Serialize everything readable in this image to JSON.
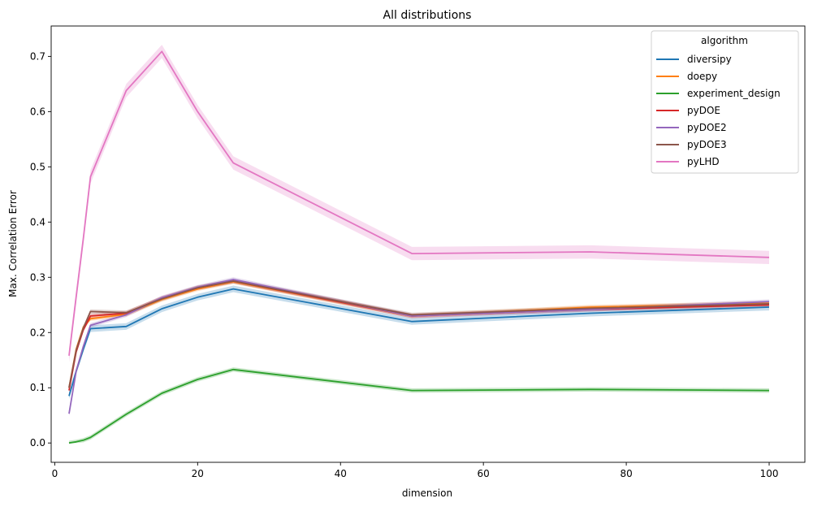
{
  "chart_data": {
    "type": "line",
    "title": "All distributions",
    "xlabel": "dimension",
    "ylabel": "Max. Correlation Error",
    "xlim": [
      -0.5,
      105
    ],
    "ylim": [
      -0.035,
      0.755
    ],
    "xticks": [
      0,
      20,
      40,
      60,
      80,
      100
    ],
    "yticks": [
      0.0,
      0.1,
      0.2,
      0.3,
      0.4,
      0.5,
      0.6,
      0.7
    ],
    "ytick_labels": [
      "0.0",
      "0.1",
      "0.2",
      "0.3",
      "0.4",
      "0.5",
      "0.6",
      "0.7"
    ],
    "grid": false,
    "legend": {
      "title": "algorithm",
      "placement": "top-right"
    },
    "x": [
      2,
      3,
      4,
      5,
      10,
      15,
      20,
      25,
      50,
      75,
      100
    ],
    "series": [
      {
        "name": "diversipy",
        "color": "#1f77b4",
        "ci": 0.006,
        "values": [
          0.085,
          0.13,
          0.17,
          0.207,
          0.211,
          0.243,
          0.264,
          0.279,
          0.22,
          0.235,
          0.246
        ]
      },
      {
        "name": "doepy",
        "color": "#ff7f0e",
        "ci": 0.004,
        "values": [
          0.1,
          0.17,
          0.21,
          0.225,
          0.233,
          0.26,
          0.279,
          0.292,
          0.23,
          0.246,
          0.253
        ]
      },
      {
        "name": "experiment_design",
        "color": "#2ca02c",
        "ci": 0.004,
        "values": [
          0.0,
          0.002,
          0.005,
          0.01,
          0.052,
          0.09,
          0.115,
          0.133,
          0.095,
          0.097,
          0.095
        ]
      },
      {
        "name": "pyDOE",
        "color": "#d62728",
        "ci": 0.004,
        "values": [
          0.095,
          0.165,
          0.205,
          0.23,
          0.235,
          0.262,
          0.281,
          0.293,
          0.23,
          0.242,
          0.25
        ]
      },
      {
        "name": "pyDOE2",
        "color": "#9467bd",
        "ci": 0.004,
        "values": [
          0.053,
          0.13,
          0.175,
          0.213,
          0.232,
          0.263,
          0.282,
          0.296,
          0.23,
          0.242,
          0.256
        ]
      },
      {
        "name": "pyDOE3",
        "color": "#8c564b",
        "ci": 0.004,
        "values": [
          0.1,
          0.168,
          0.208,
          0.238,
          0.236,
          0.261,
          0.281,
          0.293,
          0.232,
          0.244,
          0.252
        ]
      },
      {
        "name": "pyLHD",
        "color": "#e377c2",
        "ci": 0.012,
        "values": [
          0.158,
          0.265,
          0.37,
          0.482,
          0.638,
          0.709,
          0.6,
          0.507,
          0.343,
          0.346,
          0.336
        ]
      }
    ]
  }
}
